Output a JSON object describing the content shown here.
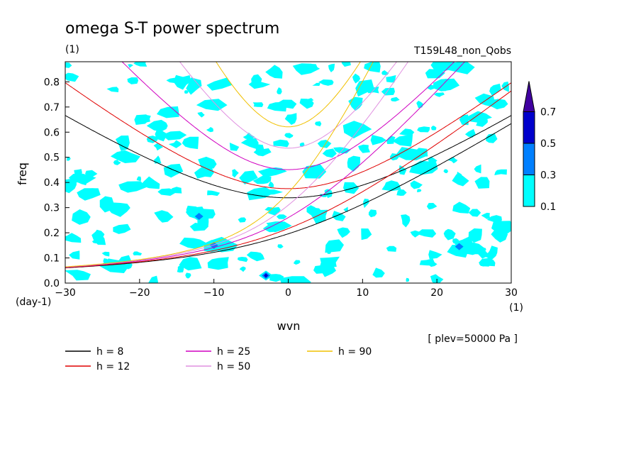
{
  "chart_data": {
    "type": "contour",
    "title": "omega S-T power spectrum",
    "title_units": "(1)",
    "experiment": "T159L48_non_Qobs",
    "xlabel": "wvn",
    "x_units": "(1)",
    "ylabel": "freq",
    "y_units": "(day-1)",
    "xlim": [
      -30,
      30
    ],
    "ylim": [
      0,
      0.88
    ],
    "x_ticks": [
      "-30",
      "-20",
      "-10",
      "0",
      "10",
      "20",
      "30"
    ],
    "y_ticks": [
      "0.0",
      "0.1",
      "0.2",
      "0.3",
      "0.4",
      "0.5",
      "0.6",
      "0.7",
      "0.8"
    ],
    "level_note": "[ plev=50000 Pa ]",
    "colorbar": {
      "levels": [
        "0.1",
        "0.3",
        "0.5",
        "0.7"
      ],
      "colors": [
        "#00ffff",
        "#0080ff",
        "#0000cc",
        "#4000a0"
      ]
    },
    "dispersion_curves": [
      {
        "label": "h =  8",
        "h": 8,
        "color": "#000000"
      },
      {
        "label": "h = 12",
        "h": 12,
        "color": "#e00000"
      },
      {
        "label": "h = 25",
        "h": 25,
        "color": "#d000c0"
      },
      {
        "label": "h = 50",
        "h": 50,
        "color": "#e090e0"
      },
      {
        "label": "h = 90",
        "h": 90,
        "color": "#f0c000"
      }
    ],
    "peaks": [
      {
        "wvn": -3,
        "freq": 0.03,
        "level": 0.5
      },
      {
        "wvn": -10,
        "freq": 0.15,
        "level": 0.3
      },
      {
        "wvn": -12,
        "freq": 0.265,
        "level": 0.3
      },
      {
        "wvn": 23,
        "freq": 0.145,
        "level": 0.3
      }
    ]
  }
}
